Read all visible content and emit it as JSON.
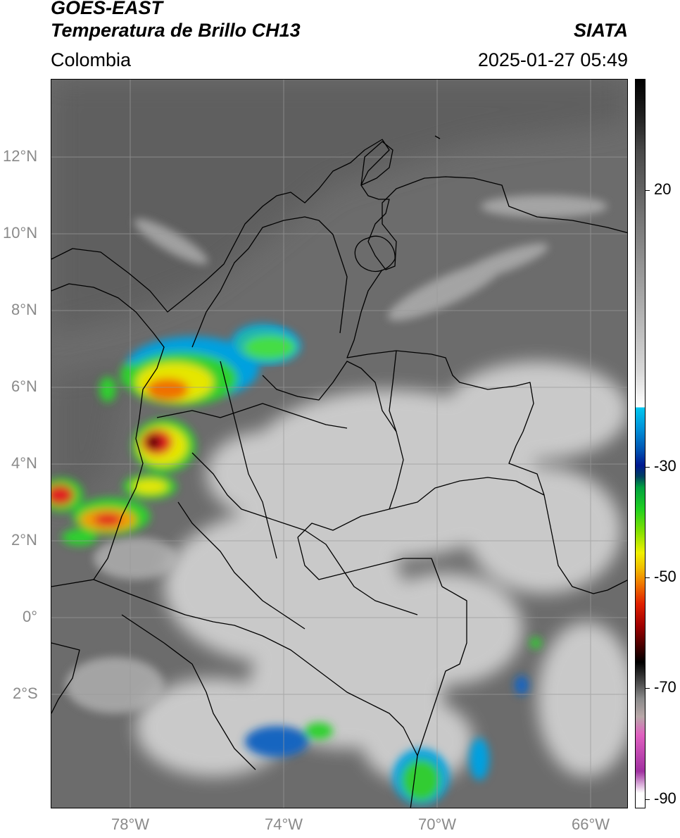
{
  "header": {
    "title_line1": "GOES-EAST",
    "title_line2": "Temperatura de Brillo CH13",
    "region": "Colombia",
    "org": "SIATA",
    "timestamp": "2025-01-27 05:49"
  },
  "map": {
    "lat_labels": [
      "12°N",
      "10°N",
      "8°N",
      "6°N",
      "4°N",
      "2°N",
      "0°",
      "2°S"
    ],
    "lon_labels": [
      "78°W",
      "74°W",
      "70°W",
      "66°W"
    ],
    "extent": {
      "lon_min": -80,
      "lon_max": -65,
      "lat_min": -5,
      "lat_max": 14
    }
  },
  "colorbar": {
    "tick_labels": [
      "20",
      "-30",
      "-50",
      "-70",
      "-90"
    ],
    "tick_values": [
      20,
      -30,
      -50,
      -70,
      -90
    ],
    "range": [
      -92,
      35
    ]
  },
  "colors": {
    "background": "#6e6e6e",
    "grid": "#9a9a9a",
    "border": "#000000"
  }
}
